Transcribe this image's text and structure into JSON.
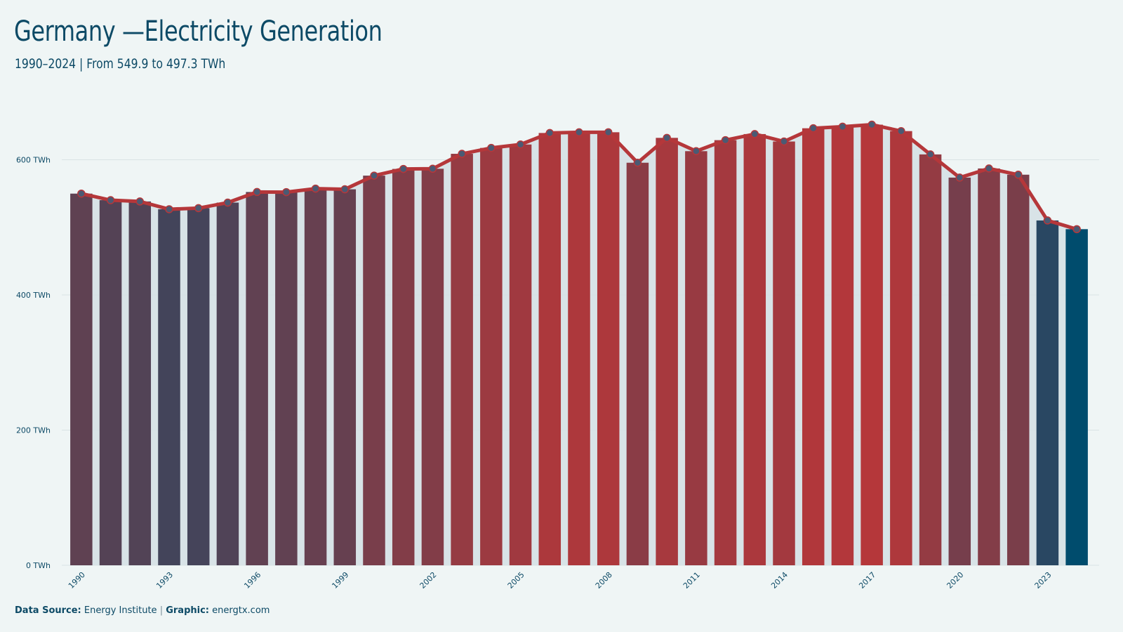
{
  "header": {
    "title": "Germany —Electricity Generation",
    "subtitle": "1990–2024 | From 549.9 to 497.3 TWh"
  },
  "footer": {
    "source_label": "Data Source:",
    "source_value": "Energy Institute",
    "separator": "|",
    "graphic_label": "Graphic:",
    "graphic_value": "energtx.com"
  },
  "colors": {
    "background": "#eff5f5",
    "line": "#b5373a",
    "low": "#004c6d",
    "high": "#b5373a",
    "area": "#d5e1e6",
    "text": "#0d4a66"
  },
  "chart_data": {
    "type": "bar",
    "title": "Germany —Electricity Generation",
    "subtitle": "1990–2024 | From 549.9 to 497.3 TWh",
    "xlabel": "",
    "ylabel": "",
    "unit": "TWh",
    "ylim": [
      0,
      680
    ],
    "yticks": [
      0,
      200,
      400,
      600
    ],
    "ytick_labels": [
      "0 TWh",
      "200 TWh",
      "400 TWh",
      "600 TWh"
    ],
    "xtick_labels": [
      "1990",
      "1993",
      "1996",
      "1999",
      "2002",
      "2005",
      "2008",
      "2011",
      "2014",
      "2017",
      "2020",
      "2023"
    ],
    "grid": true,
    "legend": "none",
    "categories": [
      1990,
      1991,
      1992,
      1993,
      1994,
      1995,
      1996,
      1997,
      1998,
      1999,
      2000,
      2001,
      2002,
      2003,
      2004,
      2005,
      2006,
      2007,
      2008,
      2009,
      2010,
      2011,
      2012,
      2013,
      2014,
      2015,
      2016,
      2017,
      2018,
      2019,
      2020,
      2021,
      2022,
      2023,
      2024
    ],
    "values": [
      549.9,
      540.2,
      538.3,
      526.8,
      528.4,
      536.6,
      552.3,
      552.1,
      557.3,
      556.3,
      576.5,
      586.4,
      586.7,
      608.8,
      617.5,
      622.6,
      639.6,
      640.6,
      640.7,
      595.6,
      632.4,
      612.7,
      629.0,
      638.0,
      627.0,
      646.6,
      649.0,
      651.9,
      642.4,
      607.9,
      573.6,
      587.1,
      577.9,
      510.2,
      497.3
    ]
  }
}
